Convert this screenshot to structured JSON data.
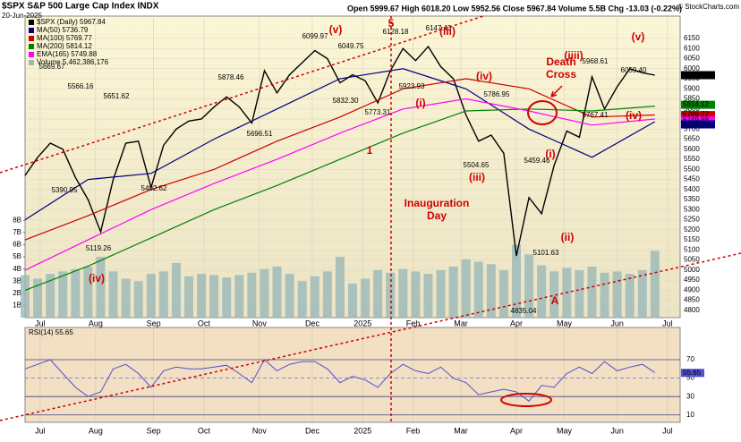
{
  "chart_data": {
    "type": "line",
    "title": "$SPX S&P 500 Large Cap Index INDX",
    "date": "20-Jun-2025",
    "quote": "Open 5999.67 High 6018.20 Low 5952.56 Close 5967.84 Volume 5.5B Chg -13.03 (-0.22%)",
    "source": "© StockCharts.com",
    "xlim": [
      0,
      260
    ],
    "xticks": [
      {
        "value": 6,
        "label": "Jul"
      },
      {
        "value": 28,
        "label": "Aug"
      },
      {
        "value": 51,
        "label": "Sep"
      },
      {
        "value": 71,
        "label": "Oct"
      },
      {
        "value": 93,
        "label": "Nov"
      },
      {
        "value": 114,
        "label": "Dec"
      },
      {
        "value": 134,
        "label": "2025"
      },
      {
        "value": 154,
        "label": "Feb"
      },
      {
        "value": 173,
        "label": "Mar"
      },
      {
        "value": 195,
        "label": "Apr"
      },
      {
        "value": 214,
        "label": "May"
      },
      {
        "value": 235,
        "label": "Jun"
      },
      {
        "value": 255,
        "label": "Jul"
      }
    ],
    "ylim": [
      4764,
      6261
    ],
    "yticks": [
      4800,
      4850,
      4900,
      4950,
      5000,
      5050,
      5100,
      5150,
      5200,
      5250,
      5300,
      5350,
      5400,
      5450,
      5500,
      5550,
      5600,
      5650,
      5700,
      5750,
      5800,
      5850,
      5900,
      5950,
      6000,
      6050,
      6100,
      6150
    ],
    "series": [
      {
        "name": "$SPX (Daily) 5967.84",
        "color": "#000000",
        "x": [
          0,
          5,
          10,
          15,
          20,
          25,
          30,
          35,
          40,
          45,
          50,
          55,
          60,
          65,
          70,
          75,
          80,
          85,
          90,
          95,
          100,
          105,
          110,
          115,
          120,
          125,
          130,
          135,
          140,
          145,
          150,
          155,
          160,
          165,
          170,
          175,
          180,
          185,
          190,
          195,
          200,
          205,
          210,
          215,
          220,
          225,
          230,
          235,
          240,
          245,
          250
        ],
        "values": [
          5470,
          5560,
          5630,
          5600,
          5460,
          5350,
          5190,
          5450,
          5630,
          5640,
          5410,
          5620,
          5700,
          5740,
          5750,
          5810,
          5860,
          5810,
          5730,
          5990,
          5880,
          5970,
          6030,
          6090,
          6050,
          5930,
          5970,
          5940,
          5830,
          5990,
          6100,
          6040,
          6110,
          6010,
          5950,
          5770,
          5640,
          5670,
          5580,
          5070,
          5360,
          5280,
          5520,
          5690,
          5660,
          5960,
          5800,
          5910,
          6000,
          5980,
          5968
        ]
      },
      {
        "name": "MA(50) 5736.79",
        "color": "#000080",
        "x": [
          0,
          25,
          50,
          75,
          100,
          125,
          150,
          175,
          200,
          225,
          250
        ],
        "values": [
          5250,
          5450,
          5480,
          5650,
          5800,
          5950,
          6000,
          5900,
          5700,
          5560,
          5737
        ]
      },
      {
        "name": "MA(100) 5769.77",
        "color": "#cc0000",
        "x": [
          0,
          25,
          50,
          75,
          100,
          125,
          150,
          175,
          200,
          225,
          250
        ],
        "values": [
          5150,
          5270,
          5400,
          5500,
          5640,
          5760,
          5900,
          5950,
          5900,
          5760,
          5770
        ]
      },
      {
        "name": "MA(200) 5814.12",
        "color": "#008000",
        "x": [
          0,
          25,
          50,
          75,
          100,
          125,
          150,
          175,
          200,
          225,
          250
        ],
        "values": [
          4900,
          5020,
          5160,
          5300,
          5420,
          5550,
          5680,
          5790,
          5800,
          5790,
          5814
        ]
      },
      {
        "name": "EMA(165) 5749.88",
        "color": "#ff00ff",
        "x": [
          0,
          25,
          50,
          75,
          100,
          125,
          150,
          175,
          200,
          225,
          250
        ],
        "values": [
          5000,
          5150,
          5300,
          5430,
          5550,
          5680,
          5800,
          5850,
          5790,
          5720,
          5750
        ]
      }
    ],
    "price_tags": [
      {
        "value": 5967.84,
        "color": "#000000"
      },
      {
        "value": 5814.12,
        "color": "#008000"
      },
      {
        "value": 5769.77,
        "color": "#cc0000"
      },
      {
        "value": 5749.88,
        "color": "#ff00ff"
      },
      {
        "value": 5736.79,
        "color": "#000080"
      }
    ],
    "volume": {
      "name": "Volume 5,462,386,176",
      "color": "#9ab8b8",
      "ylim": [
        0,
        24.8
      ],
      "yticks": [
        {
          "value": 1,
          "label": "1B"
        },
        {
          "value": 2,
          "label": "2B"
        },
        {
          "value": 3,
          "label": "3B"
        },
        {
          "value": 4,
          "label": "4B"
        },
        {
          "value": 5,
          "label": "5B"
        },
        {
          "value": 6,
          "label": "6B"
        },
        {
          "value": 7,
          "label": "7B"
        },
        {
          "value": 8,
          "label": "8B"
        }
      ],
      "values": [
        3.5,
        3.2,
        3.6,
        3.8,
        4.0,
        4.2,
        5.0,
        3.8,
        3.2,
        3.0,
        3.6,
        3.8,
        4.5,
        3.4,
        3.6,
        3.5,
        3.3,
        3.5,
        3.7,
        4.0,
        4.2,
        3.6,
        3.0,
        3.4,
        3.8,
        5.0,
        2.8,
        3.2,
        3.9,
        3.7,
        4.0,
        3.8,
        3.6,
        3.9,
        4.2,
        4.8,
        4.6,
        4.4,
        3.9,
        6.0,
        5.2,
        4.3,
        3.8,
        4.1,
        3.9,
        4.2,
        3.7,
        3.8,
        3.6,
        3.9,
        5.5
      ]
    },
    "price_labels": [
      "5669.67",
      "5566.16",
      "5390.95",
      "5651.62",
      "5119.26",
      "5402.62",
      "5878.46",
      "5696.51",
      "6099.97",
      "6049.75",
      "5832.30",
      "5773.31",
      "6128.18",
      "6147.43",
      "5923.93",
      "5786.95",
      "5504.65",
      "5459.46",
      "4835.04",
      "5101.63",
      "5968.61",
      "6059.40",
      "5767.41"
    ],
    "annotations": [
      "(iv)",
      "(v)",
      "5",
      "(i)",
      "1",
      "(iii)",
      "(iv)",
      "(iii)",
      "Death",
      "Cross",
      "Inauguration",
      "Day",
      "(i)",
      "(ii)",
      "(iiii)",
      "(v)",
      "(iv)",
      "A"
    ],
    "rsi": {
      "name": "RSI(14) 55.65",
      "color": "#5050d0",
      "value": 55.65,
      "ylim": [
        2,
        105
      ],
      "yticks": [
        10,
        30,
        50,
        70
      ],
      "values": [
        60,
        65,
        70,
        55,
        40,
        30,
        35,
        60,
        65,
        55,
        40,
        58,
        62,
        60,
        60,
        62,
        64,
        55,
        45,
        70,
        58,
        65,
        68,
        68,
        60,
        45,
        52,
        48,
        40,
        55,
        65,
        58,
        55,
        62,
        50,
        45,
        32,
        35,
        38,
        35,
        25,
        42,
        40,
        55,
        62,
        55,
        68,
        58,
        62,
        65,
        56
      ]
    }
  }
}
